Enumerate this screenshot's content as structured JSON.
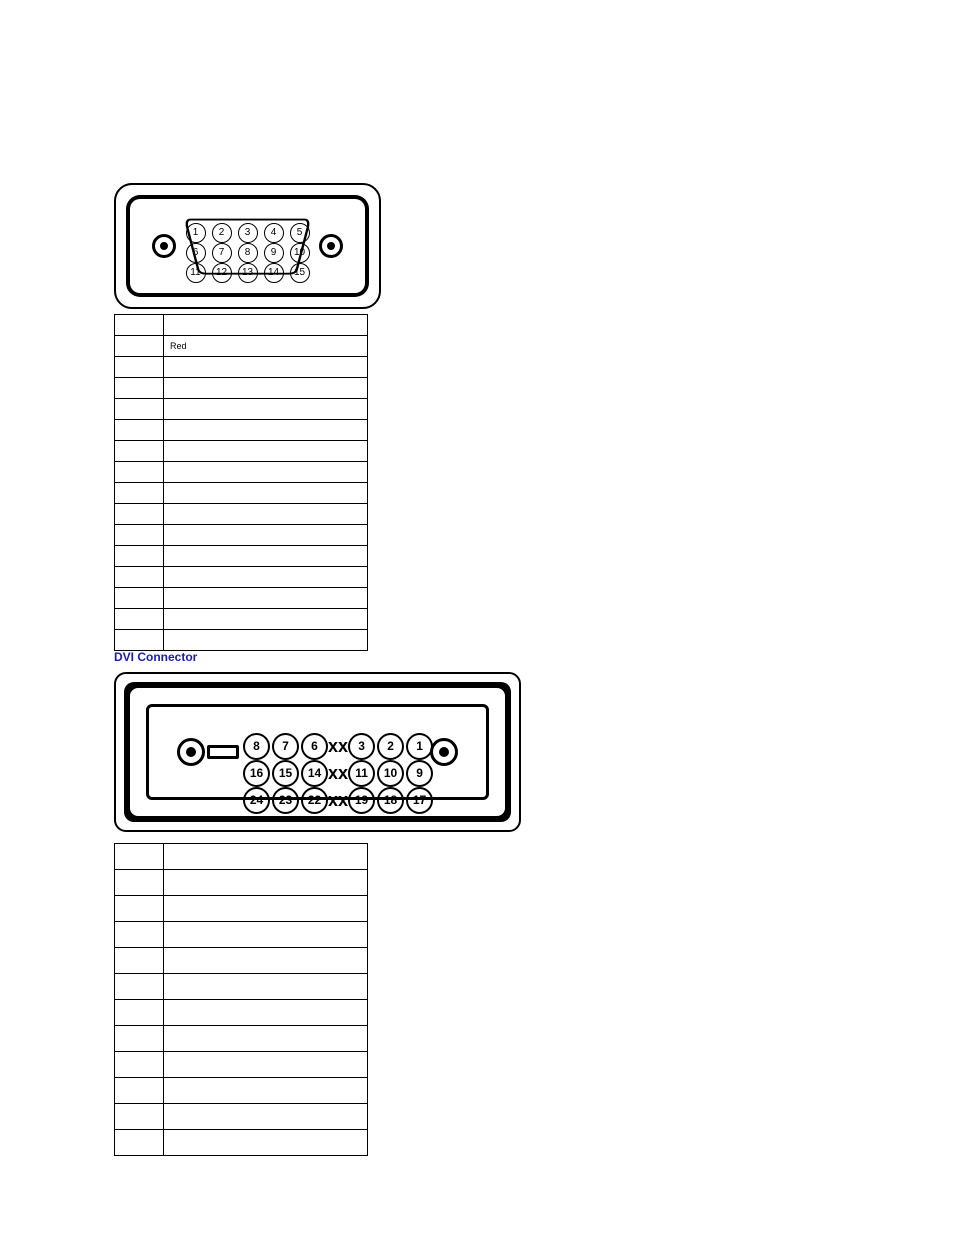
{
  "vga_connector": {
    "type": "connector-diagram",
    "rows": [
      [
        "1",
        "2",
        "3",
        "4",
        "5"
      ],
      [
        "6",
        "7",
        "8",
        "9",
        "10"
      ],
      [
        "11",
        "12",
        "13",
        "14",
        "15"
      ]
    ],
    "outline_color": "#000000",
    "background_color": "#ffffff"
  },
  "vga_table": {
    "type": "table",
    "columns": [
      "",
      ""
    ],
    "col_num_width": 36,
    "rows": [
      [
        "",
        ""
      ],
      [
        "",
        "Red"
      ],
      [
        "",
        ""
      ],
      [
        "",
        ""
      ],
      [
        "",
        ""
      ],
      [
        "",
        ""
      ],
      [
        "",
        ""
      ],
      [
        "",
        ""
      ],
      [
        "",
        ""
      ],
      [
        "",
        ""
      ],
      [
        "",
        ""
      ],
      [
        "",
        ""
      ],
      [
        "",
        ""
      ],
      [
        "",
        ""
      ],
      [
        "",
        ""
      ],
      [
        "",
        ""
      ]
    ],
    "border_color": "#000000",
    "font_size": 9
  },
  "dvi_heading": {
    "text": "DVI Connector",
    "color": "#1a1aaf",
    "font_size": 12,
    "font_weight": "bold"
  },
  "dvi_connector": {
    "type": "connector-diagram",
    "rows": [
      {
        "left": [
          "8",
          "7",
          "6"
        ],
        "mid": "xx",
        "right": [
          "3",
          "2",
          "1"
        ]
      },
      {
        "left": [
          "16",
          "15",
          "14"
        ],
        "mid": "xx",
        "right": [
          "11",
          "10",
          "9"
        ]
      },
      {
        "left": [
          "24",
          "23",
          "22"
        ],
        "mid": "xx",
        "right": [
          "19",
          "18",
          "17"
        ]
      }
    ],
    "outline_color": "#000000",
    "background_color": "#ffffff"
  },
  "dvi_table": {
    "type": "table",
    "columns": [
      "",
      ""
    ],
    "col_num_width": 36,
    "rows": [
      [
        "",
        ""
      ],
      [
        "",
        ""
      ],
      [
        "",
        ""
      ],
      [
        "",
        ""
      ],
      [
        "",
        ""
      ],
      [
        "",
        ""
      ],
      [
        "",
        ""
      ],
      [
        "",
        ""
      ],
      [
        "",
        ""
      ],
      [
        "",
        ""
      ],
      [
        "",
        ""
      ],
      [
        "",
        ""
      ]
    ],
    "border_color": "#000000",
    "font_size": 9
  }
}
